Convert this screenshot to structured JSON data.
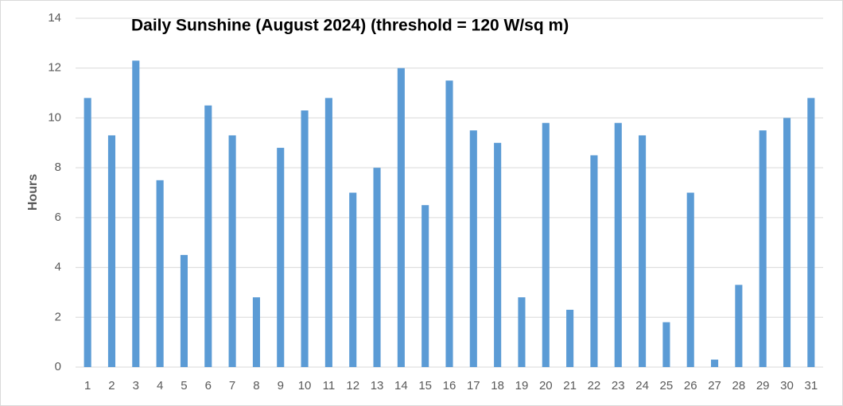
{
  "chart_data": {
    "type": "bar",
    "title": "Daily Sunshine (August 2024) (threshold = 120 W/sq m)",
    "y_label": "Hours",
    "categories": [
      "1",
      "2",
      "3",
      "4",
      "5",
      "6",
      "7",
      "8",
      "9",
      "10",
      "11",
      "12",
      "13",
      "14",
      "15",
      "16",
      "17",
      "18",
      "19",
      "20",
      "21",
      "22",
      "23",
      "24",
      "25",
      "26",
      "27",
      "28",
      "29",
      "30",
      "31"
    ],
    "values": [
      10.8,
      9.3,
      12.3,
      7.5,
      4.5,
      10.5,
      9.3,
      2.8,
      8.8,
      10.3,
      10.8,
      7.0,
      8.0,
      12.0,
      6.5,
      11.5,
      9.5,
      9.0,
      2.8,
      9.8,
      2.3,
      8.5,
      9.8,
      9.3,
      1.8,
      7.0,
      0.3,
      3.3,
      9.5,
      10.0,
      10.8
    ],
    "color": "#5b9bd5",
    "ylim": [
      0,
      14
    ],
    "yticks": [
      0,
      2,
      4,
      6,
      8,
      10,
      12,
      14
    ],
    "grid": true
  }
}
